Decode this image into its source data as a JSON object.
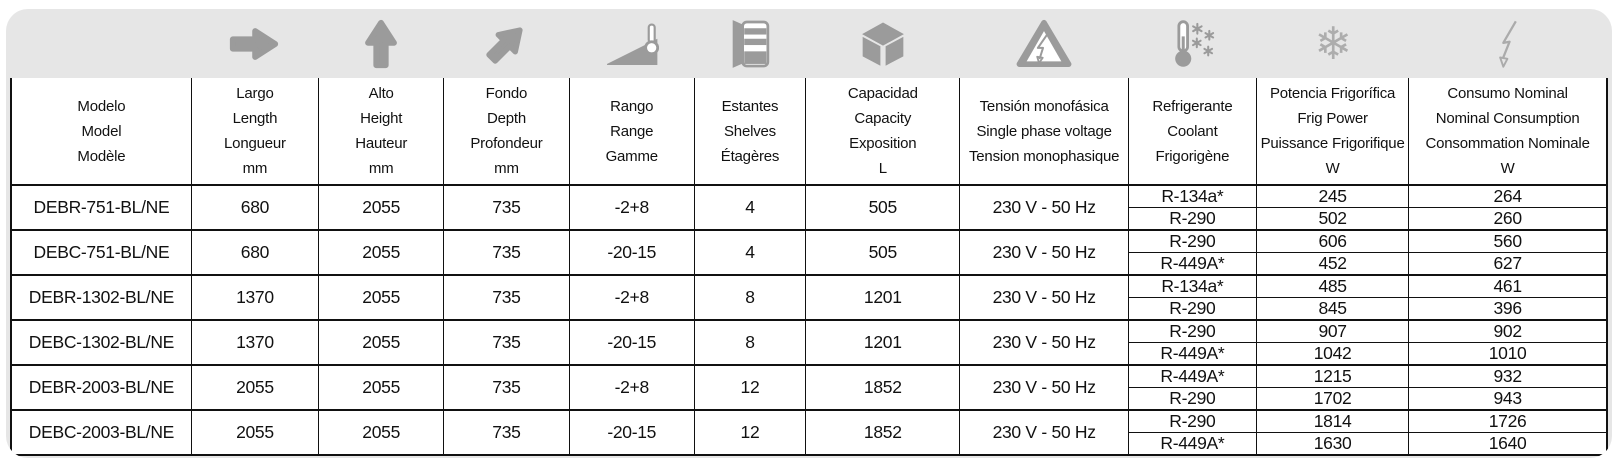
{
  "card": {
    "background": "#e6e6e6",
    "icon_color": "#9b9b9b",
    "icon_outline_color": "#ababab",
    "border_color": "#111111"
  },
  "icons": [
    "arrow-right-icon",
    "arrow-up-icon",
    "arrow-diagonal-icon",
    "ramp-thermometer-icon",
    "shelves-icon",
    "cube-icon",
    "high-voltage-warning-icon",
    "coolant-thermometer-icon",
    "snowflake-icon",
    "lightning-icon"
  ],
  "table": {
    "header": [
      {
        "key": "model",
        "lines": [
          "Modelo",
          "Model",
          "Modèle"
        ]
      },
      {
        "key": "length",
        "lines": [
          "Largo",
          "Length",
          "Longueur",
          "mm"
        ]
      },
      {
        "key": "height",
        "lines": [
          "Alto",
          "Height",
          "Hauteur",
          "mm"
        ]
      },
      {
        "key": "depth",
        "lines": [
          "Fondo",
          "Depth",
          "Profondeur",
          "mm"
        ]
      },
      {
        "key": "range",
        "lines": [
          "Rango",
          "Range",
          "Gamme"
        ]
      },
      {
        "key": "shelves",
        "lines": [
          "Estantes",
          "Shelves",
          "Étagères"
        ]
      },
      {
        "key": "capacity",
        "lines": [
          "Capacidad",
          "Capacity",
          "Exposition",
          "L"
        ]
      },
      {
        "key": "voltage",
        "lines": [
          "Tensión monofásica",
          "Single phase voltage",
          "Tension monophasique"
        ]
      },
      {
        "key": "coolant",
        "lines": [
          "Refrigerante",
          "Coolant",
          "Frigorigène"
        ]
      },
      {
        "key": "power",
        "lines": [
          "Potencia Frigorífica",
          "Frig Power",
          "Puissance Frigorifique",
          "W"
        ]
      },
      {
        "key": "consumption",
        "lines": [
          "Consumo Nominal",
          "Nominal Consumption",
          "Consommation  Nominale",
          "W"
        ]
      }
    ],
    "rows": [
      {
        "model": "DEBR-751-BL/NE",
        "length": "680",
        "height": "2055",
        "depth": "735",
        "range": "-2+8",
        "shelves": "4",
        "capacity": "505",
        "voltage": "230 V - 50 Hz",
        "variants": [
          {
            "coolant": "R-134a*",
            "power": "245",
            "consumption": "264"
          },
          {
            "coolant": "R-290",
            "power": "502",
            "consumption": "260"
          }
        ]
      },
      {
        "model": "DEBC-751-BL/NE",
        "length": "680",
        "height": "2055",
        "depth": "735",
        "range": "-20-15",
        "shelves": "4",
        "capacity": "505",
        "voltage": "230 V - 50 Hz",
        "variants": [
          {
            "coolant": "R-290",
            "power": "606",
            "consumption": "560"
          },
          {
            "coolant": "R-449A*",
            "power": "452",
            "consumption": "627"
          }
        ]
      },
      {
        "model": "DEBR-1302-BL/NE",
        "length": "1370",
        "height": "2055",
        "depth": "735",
        "range": "-2+8",
        "shelves": "8",
        "capacity": "1201",
        "voltage": "230 V - 50 Hz",
        "variants": [
          {
            "coolant": "R-134a*",
            "power": "485",
            "consumption": "461"
          },
          {
            "coolant": "R-290",
            "power": "845",
            "consumption": "396"
          }
        ]
      },
      {
        "model": "DEBC-1302-BL/NE",
        "length": "1370",
        "height": "2055",
        "depth": "735",
        "range": "-20-15",
        "shelves": "8",
        "capacity": "1201",
        "voltage": "230 V - 50 Hz",
        "variants": [
          {
            "coolant": "R-290",
            "power": "907",
            "consumption": "902"
          },
          {
            "coolant": "R-449A*",
            "power": "1042",
            "consumption": "1010"
          }
        ]
      },
      {
        "model": "DEBR-2003-BL/NE",
        "length": "2055",
        "height": "2055",
        "depth": "735",
        "range": "-2+8",
        "shelves": "12",
        "capacity": "1852",
        "voltage": "230 V - 50 Hz",
        "variants": [
          {
            "coolant": "R-449A*",
            "power": "1215",
            "consumption": "932"
          },
          {
            "coolant": "R-290",
            "power": "1702",
            "consumption": "943"
          }
        ]
      },
      {
        "model": "DEBC-2003-BL/NE",
        "length": "2055",
        "height": "2055",
        "depth": "735",
        "range": "-20-15",
        "shelves": "12",
        "capacity": "1852",
        "voltage": "230 V - 50 Hz",
        "variants": [
          {
            "coolant": "R-290",
            "power": "1814",
            "consumption": "1726"
          },
          {
            "coolant": "R-449A*",
            "power": "1630",
            "consumption": "1640"
          }
        ]
      }
    ]
  }
}
